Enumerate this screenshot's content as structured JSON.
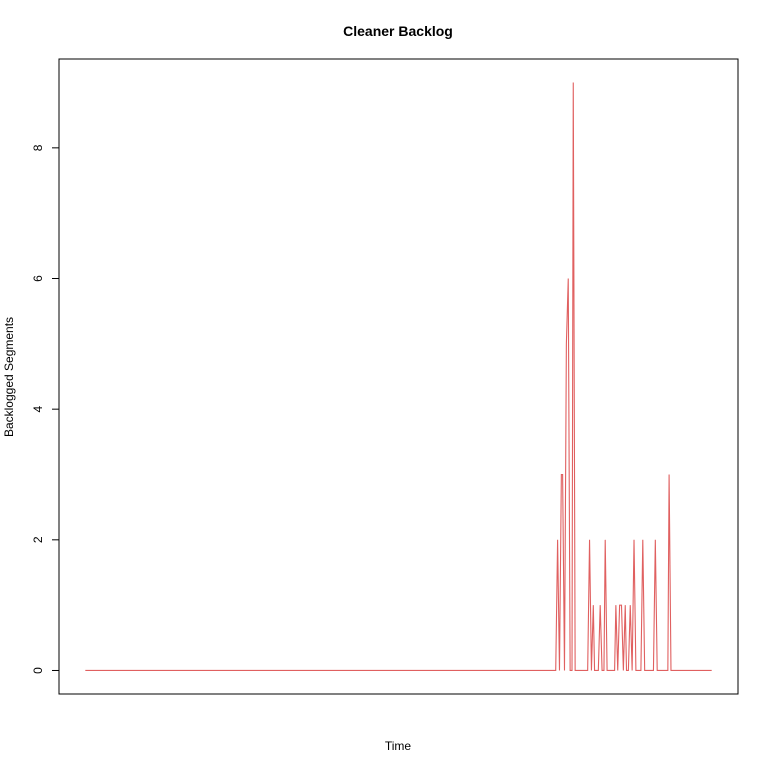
{
  "chart_data": {
    "type": "line",
    "title": "Cleaner Backlog",
    "xlabel": "Time",
    "ylabel": "Backlogged Segments",
    "y_ticks": [
      0,
      2,
      4,
      6,
      8
    ],
    "y_tick_labels": [
      "0",
      "2",
      "4",
      "6",
      "8"
    ],
    "x_ticks_shown": false,
    "ylim": [
      -0.36,
      9.36
    ],
    "xlim": [
      -4.2,
      104.2
    ],
    "grid": false,
    "series": [
      {
        "color": "#e06060",
        "x": [
          0,
          75.1,
          75.4,
          75.7,
          76.0,
          76.2,
          76.5,
          76.8,
          77.1,
          77.4,
          77.7,
          77.9,
          78.2,
          78.5,
          78.8,
          79.1,
          79.4,
          79.6,
          79.9,
          80.2,
          80.5,
          80.8,
          81.1,
          81.3,
          81.6,
          81.9,
          82.2,
          82.5,
          82.8,
          83.0,
          83.3,
          83.6,
          83.9,
          84.2,
          84.5,
          84.7,
          85.0,
          85.3,
          85.6,
          85.9,
          86.2,
          86.4,
          86.7,
          87.0,
          87.3,
          87.6,
          87.9,
          88.1,
          88.4,
          88.7,
          89.0,
          89.3,
          89.6,
          89.8,
          90.1,
          90.4,
          90.7,
          91.0,
          91.3,
          91.5,
          91.8,
          92.1,
          92.4,
          92.7,
          93.0,
          93.2,
          93.5,
          93.8,
          94.1,
          94.4,
          94.7,
          94.9,
          95.2,
          95.5,
          95.8,
          96.1,
          96.4,
          96.6,
          96.9,
          97.2,
          97.5,
          97.8,
          98.1,
          98.3,
          98.6,
          98.9,
          99.2,
          99.5,
          99.8,
          100
        ],
        "values": [
          0,
          0,
          2,
          0,
          3,
          3,
          0,
          5,
          6,
          0,
          0,
          9,
          0,
          0,
          0,
          0,
          0,
          0,
          0,
          0,
          2,
          0,
          1,
          0,
          0,
          0,
          1,
          0,
          0,
          2,
          0,
          0,
          0,
          0,
          0,
          1,
          0,
          1,
          1,
          0,
          1,
          0,
          0,
          1,
          0,
          2,
          0,
          0,
          0,
          0,
          2,
          0,
          0,
          0,
          0,
          0,
          0,
          2,
          0,
          0,
          0,
          0,
          0,
          0,
          0,
          3,
          0,
          0,
          0,
          0,
          0,
          0,
          0,
          0,
          0,
          0,
          0,
          0,
          0,
          0,
          0,
          0,
          0,
          0,
          0,
          0,
          0,
          0,
          0,
          0
        ]
      }
    ]
  }
}
